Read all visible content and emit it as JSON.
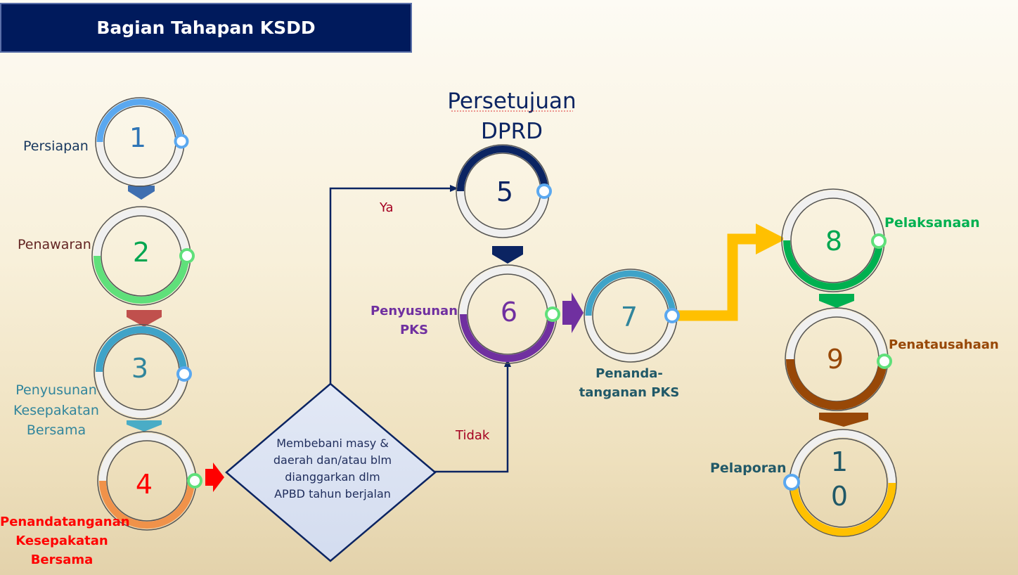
{
  "header": {
    "title": "Bagian Tahapan KSDD"
  },
  "top_title": {
    "line1": "Persetujuan",
    "line2": "DPRD"
  },
  "steps": {
    "s1": {
      "number": "1",
      "label": "Persiapan",
      "color": "#5aa8f0"
    },
    "s2": {
      "number": "2",
      "label": "Penawaran",
      "color": "#5fe07a"
    },
    "s3": {
      "number": "3",
      "label_lines": [
        "Penyusunan",
        "Kesepakatan",
        "Bersama"
      ],
      "color": "#3fa3c8"
    },
    "s4": {
      "number": "4",
      "label_lines": [
        "Penandatanganan",
        "Kesepakatan",
        "Bersama"
      ],
      "color": "#f0924a"
    },
    "s5": {
      "number": "5",
      "color": "#0b2462"
    },
    "s6": {
      "number": "6",
      "label_lines": [
        "Penyusunan",
        "PKS"
      ],
      "color": "#7030a0"
    },
    "s7": {
      "number": "7",
      "label_lines": [
        "Penanda-",
        "tanganan PKS"
      ],
      "color": "#3fa3c8"
    },
    "s8": {
      "number": "8",
      "label": "Pelaksanaan",
      "color": "#00b050"
    },
    "s9": {
      "number": "9",
      "label": "Penatausahaan",
      "color": "#984807"
    },
    "s10": {
      "number_lines": [
        "1",
        "0"
      ],
      "label": "Pelaporan",
      "color": "#ffc000"
    }
  },
  "decision": {
    "text_lines": [
      "Membebani masy &",
      "daerah dan/atau blm",
      "dianggarkan dlm",
      "APBD tahun berjalan"
    ],
    "yes": "Ya",
    "no": "Tidak"
  }
}
